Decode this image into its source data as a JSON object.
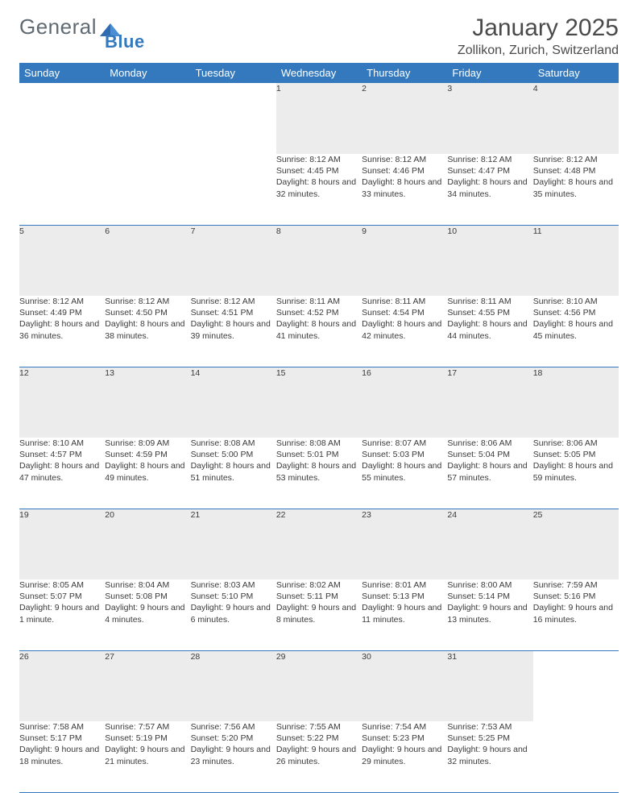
{
  "brand": {
    "part1": "General",
    "part2": "Blue"
  },
  "title": "January 2025",
  "location": "Zollikon, Zurich, Switzerland",
  "colors": {
    "header_bg": "#3479bd",
    "header_fg": "#ffffff",
    "daynum_bg": "#ececec",
    "rule": "#3479bd",
    "text": "#3a3a3a",
    "title": "#4a4a4a"
  },
  "weekdays": [
    "Sunday",
    "Monday",
    "Tuesday",
    "Wednesday",
    "Thursday",
    "Friday",
    "Saturday"
  ],
  "weeks": [
    [
      null,
      null,
      null,
      {
        "n": "1",
        "sr": "8:12 AM",
        "ss": "4:45 PM",
        "dl": "8 hours and 32 minutes."
      },
      {
        "n": "2",
        "sr": "8:12 AM",
        "ss": "4:46 PM",
        "dl": "8 hours and 33 minutes."
      },
      {
        "n": "3",
        "sr": "8:12 AM",
        "ss": "4:47 PM",
        "dl": "8 hours and 34 minutes."
      },
      {
        "n": "4",
        "sr": "8:12 AM",
        "ss": "4:48 PM",
        "dl": "8 hours and 35 minutes."
      }
    ],
    [
      {
        "n": "5",
        "sr": "8:12 AM",
        "ss": "4:49 PM",
        "dl": "8 hours and 36 minutes."
      },
      {
        "n": "6",
        "sr": "8:12 AM",
        "ss": "4:50 PM",
        "dl": "8 hours and 38 minutes."
      },
      {
        "n": "7",
        "sr": "8:12 AM",
        "ss": "4:51 PM",
        "dl": "8 hours and 39 minutes."
      },
      {
        "n": "8",
        "sr": "8:11 AM",
        "ss": "4:52 PM",
        "dl": "8 hours and 41 minutes."
      },
      {
        "n": "9",
        "sr": "8:11 AM",
        "ss": "4:54 PM",
        "dl": "8 hours and 42 minutes."
      },
      {
        "n": "10",
        "sr": "8:11 AM",
        "ss": "4:55 PM",
        "dl": "8 hours and 44 minutes."
      },
      {
        "n": "11",
        "sr": "8:10 AM",
        "ss": "4:56 PM",
        "dl": "8 hours and 45 minutes."
      }
    ],
    [
      {
        "n": "12",
        "sr": "8:10 AM",
        "ss": "4:57 PM",
        "dl": "8 hours and 47 minutes."
      },
      {
        "n": "13",
        "sr": "8:09 AM",
        "ss": "4:59 PM",
        "dl": "8 hours and 49 minutes."
      },
      {
        "n": "14",
        "sr": "8:08 AM",
        "ss": "5:00 PM",
        "dl": "8 hours and 51 minutes."
      },
      {
        "n": "15",
        "sr": "8:08 AM",
        "ss": "5:01 PM",
        "dl": "8 hours and 53 minutes."
      },
      {
        "n": "16",
        "sr": "8:07 AM",
        "ss": "5:03 PM",
        "dl": "8 hours and 55 minutes."
      },
      {
        "n": "17",
        "sr": "8:06 AM",
        "ss": "5:04 PM",
        "dl": "8 hours and 57 minutes."
      },
      {
        "n": "18",
        "sr": "8:06 AM",
        "ss": "5:05 PM",
        "dl": "8 hours and 59 minutes."
      }
    ],
    [
      {
        "n": "19",
        "sr": "8:05 AM",
        "ss": "5:07 PM",
        "dl": "9 hours and 1 minute."
      },
      {
        "n": "20",
        "sr": "8:04 AM",
        "ss": "5:08 PM",
        "dl": "9 hours and 4 minutes."
      },
      {
        "n": "21",
        "sr": "8:03 AM",
        "ss": "5:10 PM",
        "dl": "9 hours and 6 minutes."
      },
      {
        "n": "22",
        "sr": "8:02 AM",
        "ss": "5:11 PM",
        "dl": "9 hours and 8 minutes."
      },
      {
        "n": "23",
        "sr": "8:01 AM",
        "ss": "5:13 PM",
        "dl": "9 hours and 11 minutes."
      },
      {
        "n": "24",
        "sr": "8:00 AM",
        "ss": "5:14 PM",
        "dl": "9 hours and 13 minutes."
      },
      {
        "n": "25",
        "sr": "7:59 AM",
        "ss": "5:16 PM",
        "dl": "9 hours and 16 minutes."
      }
    ],
    [
      {
        "n": "26",
        "sr": "7:58 AM",
        "ss": "5:17 PM",
        "dl": "9 hours and 18 minutes."
      },
      {
        "n": "27",
        "sr": "7:57 AM",
        "ss": "5:19 PM",
        "dl": "9 hours and 21 minutes."
      },
      {
        "n": "28",
        "sr": "7:56 AM",
        "ss": "5:20 PM",
        "dl": "9 hours and 23 minutes."
      },
      {
        "n": "29",
        "sr": "7:55 AM",
        "ss": "5:22 PM",
        "dl": "9 hours and 26 minutes."
      },
      {
        "n": "30",
        "sr": "7:54 AM",
        "ss": "5:23 PM",
        "dl": "9 hours and 29 minutes."
      },
      {
        "n": "31",
        "sr": "7:53 AM",
        "ss": "5:25 PM",
        "dl": "9 hours and 32 minutes."
      },
      null
    ]
  ],
  "labels": {
    "sunrise": "Sunrise:",
    "sunset": "Sunset:",
    "daylight": "Daylight:"
  }
}
